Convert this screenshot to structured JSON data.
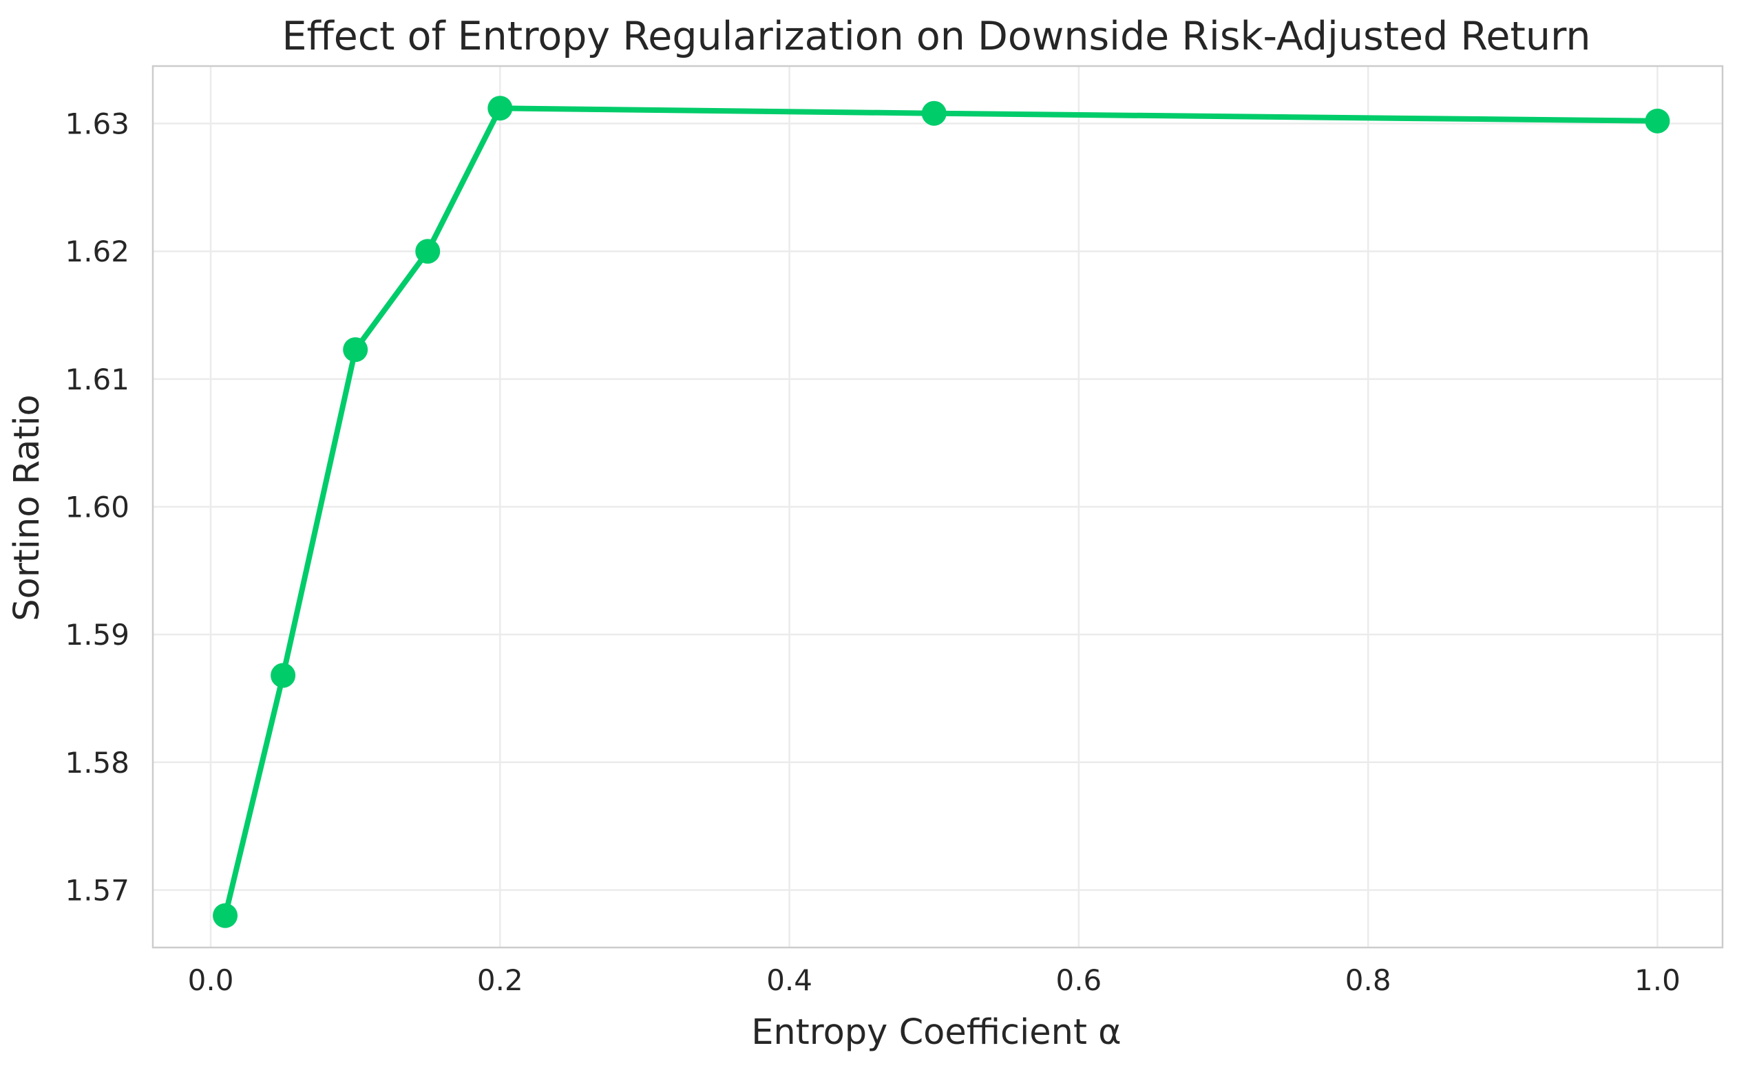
{
  "chart_data": {
    "type": "line",
    "title": "Effect of Entropy Regularization on Downside Risk-Adjusted Return",
    "xlabel": "Entropy Coefficient α",
    "ylabel": "Sortino Ratio",
    "xlim": [
      -0.04,
      1.045
    ],
    "ylim": [
      1.5655,
      1.6345
    ],
    "x_ticks": [
      0.0,
      0.2,
      0.4,
      0.6,
      0.8,
      1.0
    ],
    "x_tick_labels": [
      "0.0",
      "0.2",
      "0.4",
      "0.6",
      "0.8",
      "1.0"
    ],
    "y_ticks": [
      1.57,
      1.58,
      1.59,
      1.6,
      1.61,
      1.62,
      1.63
    ],
    "y_tick_labels": [
      "1.57",
      "1.58",
      "1.59",
      "1.60",
      "1.61",
      "1.62",
      "1.63"
    ],
    "grid": true,
    "series": [
      {
        "color": "#00cc6a",
        "x": [
          0.01,
          0.05,
          0.1,
          0.15,
          0.2,
          0.5,
          1.0
        ],
        "y": [
          1.568,
          1.5868,
          1.6123,
          1.62,
          1.6312,
          1.6308,
          1.6302
        ]
      }
    ]
  }
}
